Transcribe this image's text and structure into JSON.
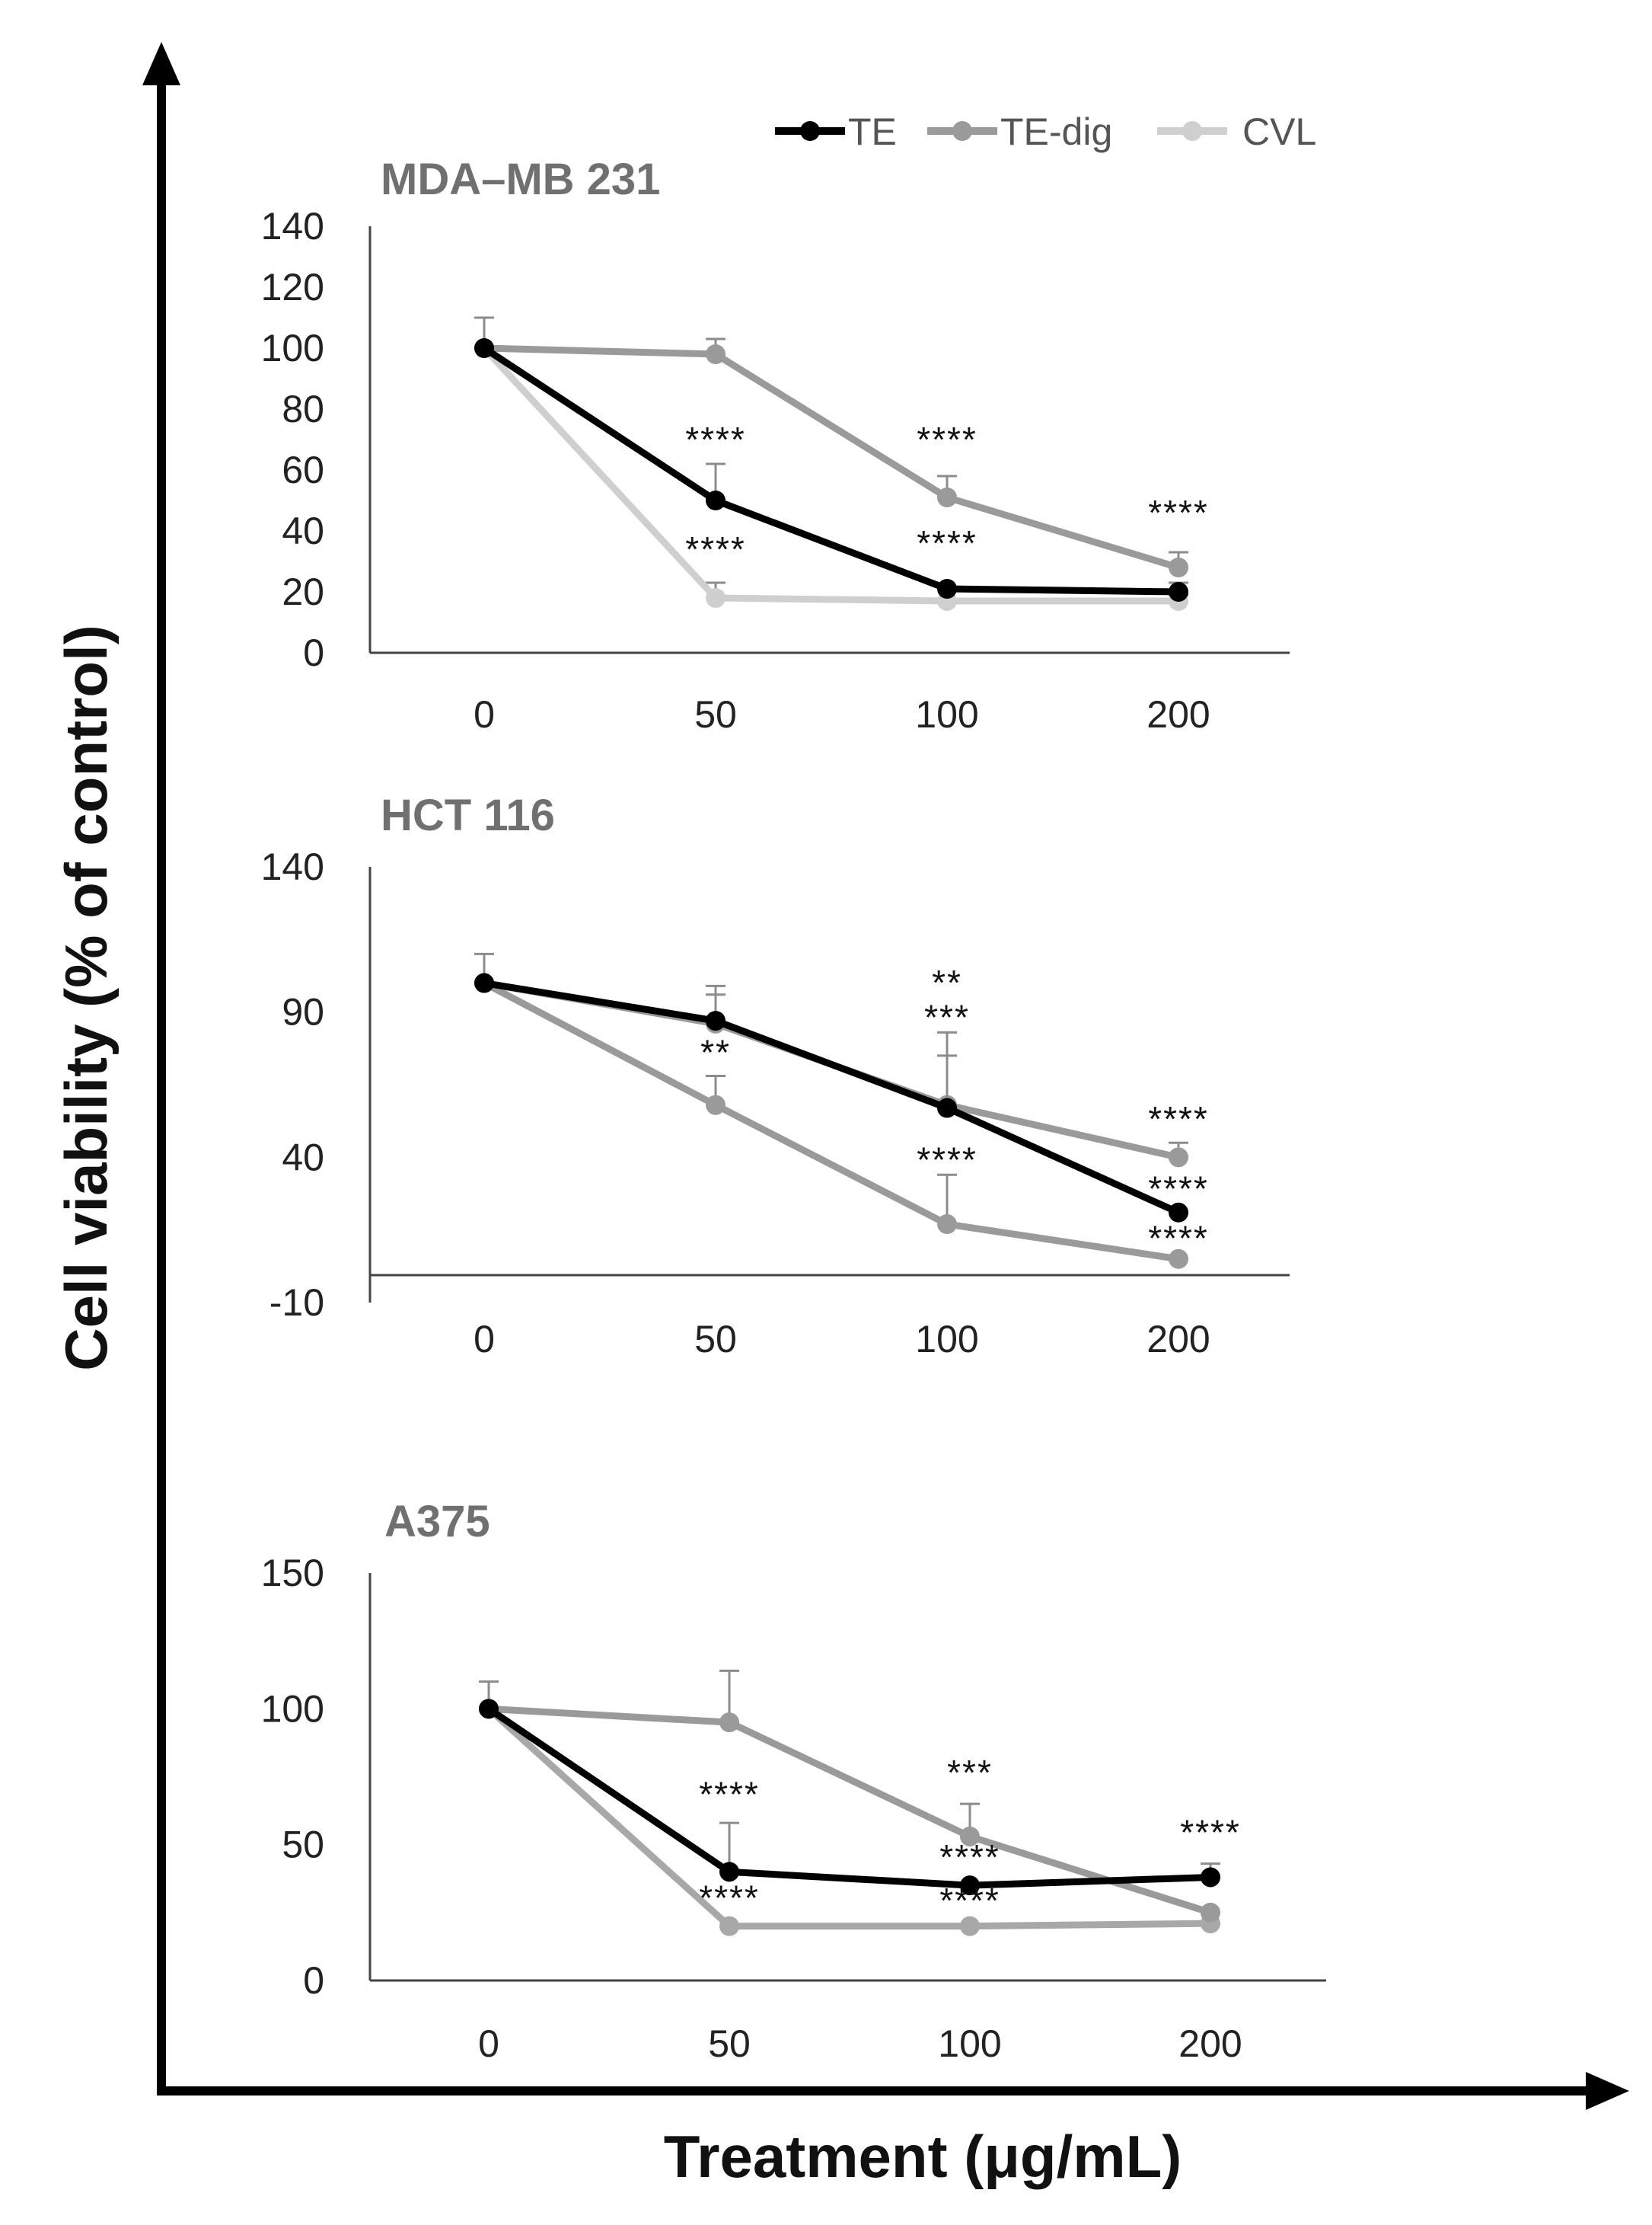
{
  "figure": {
    "xlabel": "Treatment (μg/mL)",
    "ylabel": "Cell viability (% of control)"
  },
  "legend": [
    {
      "name": "TE",
      "color": "#000000"
    },
    {
      "name": "TE-dig",
      "color": "#9a9a9a"
    },
    {
      "name": "CVL",
      "color": "#cfcfcf"
    }
  ],
  "chart_data": [
    {
      "type": "line",
      "title": "MDA–MB 231",
      "categories": [
        "0",
        "50",
        "100",
        "200"
      ],
      "ylim": [
        0,
        140
      ],
      "yticks": [
        "0",
        "20",
        "40",
        "60",
        "80",
        "100",
        "120",
        "140"
      ],
      "series": [
        {
          "name": "TE",
          "color": "#000000",
          "values": [
            100,
            50,
            21,
            20
          ],
          "error": [
            0,
            12,
            0,
            3
          ]
        },
        {
          "name": "TE-dig",
          "color": "#9a9a9a",
          "values": [
            100,
            98,
            51,
            28
          ],
          "error": [
            10,
            5,
            7,
            5
          ]
        },
        {
          "name": "CVL",
          "color": "#cfcfcf",
          "values": [
            100,
            18,
            17,
            17
          ],
          "error": [
            0,
            5,
            0,
            2
          ]
        }
      ],
      "annotations": [
        {
          "x": "50",
          "y": 66,
          "text": "****"
        },
        {
          "x": "100",
          "y": 66,
          "text": "****"
        },
        {
          "x": "50",
          "y": 30,
          "text": "****"
        },
        {
          "x": "100",
          "y": 32,
          "text": "****"
        },
        {
          "x": "200",
          "y": 42,
          "text": "****"
        }
      ]
    },
    {
      "type": "line",
      "title": "HCT 116",
      "categories": [
        "0",
        "50",
        "100",
        "200"
      ],
      "ylim": [
        -10,
        140
      ],
      "yticks": [
        "-10",
        "40",
        "90",
        "140"
      ],
      "series": [
        {
          "name": "TE",
          "color": "#000000",
          "values": [
            100,
            87,
            57,
            21
          ],
          "error": [
            0,
            12,
            18,
            0
          ]
        },
        {
          "name": "TE-dig",
          "color": "#9a9a9a",
          "values": [
            100,
            86,
            58,
            40
          ],
          "error": [
            10,
            10,
            25,
            5
          ]
        },
        {
          "name": "CVL",
          "color": "#9a9a9a",
          "values": [
            100,
            58,
            17,
            5
          ],
          "error": [
            0,
            10,
            17,
            0
          ]
        }
      ],
      "annotations": [
        {
          "x": "100",
          "y": 96,
          "text": "**"
        },
        {
          "x": "100",
          "y": 84,
          "text": "***"
        },
        {
          "x": "50",
          "y": 72,
          "text": "**"
        },
        {
          "x": "200",
          "y": 49,
          "text": "****"
        },
        {
          "x": "100",
          "y": 35,
          "text": "****"
        },
        {
          "x": "200",
          "y": 25,
          "text": "****"
        },
        {
          "x": "200",
          "y": 8,
          "text": "****"
        }
      ]
    },
    {
      "type": "line",
      "title": "A375",
      "categories": [
        "0",
        "50",
        "100",
        "200"
      ],
      "ylim": [
        0,
        150
      ],
      "yticks": [
        "0",
        "50",
        "100",
        "150"
      ],
      "series": [
        {
          "name": "TE",
          "color": "#000000",
          "values": [
            100,
            40,
            35,
            38
          ],
          "error": [
            0,
            18,
            0,
            5
          ]
        },
        {
          "name": "TE-dig",
          "color": "#9a9a9a",
          "values": [
            100,
            95,
            53,
            25
          ],
          "error": [
            10,
            19,
            12,
            0
          ]
        },
        {
          "name": "CVL",
          "color": "#a8a8a8",
          "values": [
            100,
            20,
            20,
            21
          ],
          "error": [
            0,
            0,
            0,
            0
          ]
        }
      ],
      "annotations": [
        {
          "x": "50",
          "y": 64,
          "text": "****"
        },
        {
          "x": "100",
          "y": 72,
          "text": "***"
        },
        {
          "x": "200",
          "y": 50,
          "text": "****"
        },
        {
          "x": "100",
          "y": 41,
          "text": "****"
        },
        {
          "x": "50",
          "y": 26,
          "text": "****"
        },
        {
          "x": "100",
          "y": 25,
          "text": "****"
        }
      ]
    }
  ]
}
